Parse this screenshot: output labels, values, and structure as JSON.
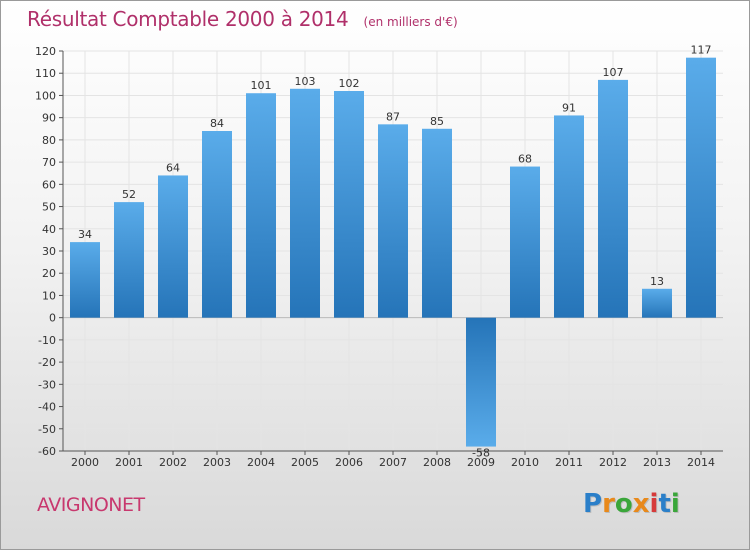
{
  "header": {
    "title": "Résultat Comptable 2000 à 2014",
    "subtitle": "(en milliers d'€)"
  },
  "footer": {
    "commune": "AVIGNONET",
    "logo_text": "Proxiti",
    "logo_colors": [
      "#2a7fc9",
      "#e8891b",
      "#3aa63a",
      "#e8891b",
      "#d63a3a",
      "#2a7fc9",
      "#3aa63a"
    ]
  },
  "colors": {
    "title": "#b0306a",
    "bar_light": "#5aacea",
    "bar_dark": "#2574b8"
  },
  "chart_data": {
    "type": "bar",
    "title": "Résultat Comptable 2000 à 2014",
    "subtitle": "(en milliers d'€)",
    "categories": [
      "2000",
      "2001",
      "2002",
      "2003",
      "2004",
      "2005",
      "2006",
      "2007",
      "2008",
      "2009",
      "2010",
      "2011",
      "2012",
      "2013",
      "2014"
    ],
    "values": [
      34,
      52,
      64,
      84,
      101,
      103,
      102,
      87,
      85,
      -58,
      68,
      91,
      107,
      13,
      117
    ],
    "ylim": [
      -60,
      120
    ],
    "yticks": [
      -60,
      -50,
      -40,
      -30,
      -20,
      -10,
      0,
      10,
      20,
      30,
      40,
      50,
      60,
      70,
      80,
      90,
      100,
      110,
      120
    ],
    "grid": true,
    "legend": "none"
  }
}
